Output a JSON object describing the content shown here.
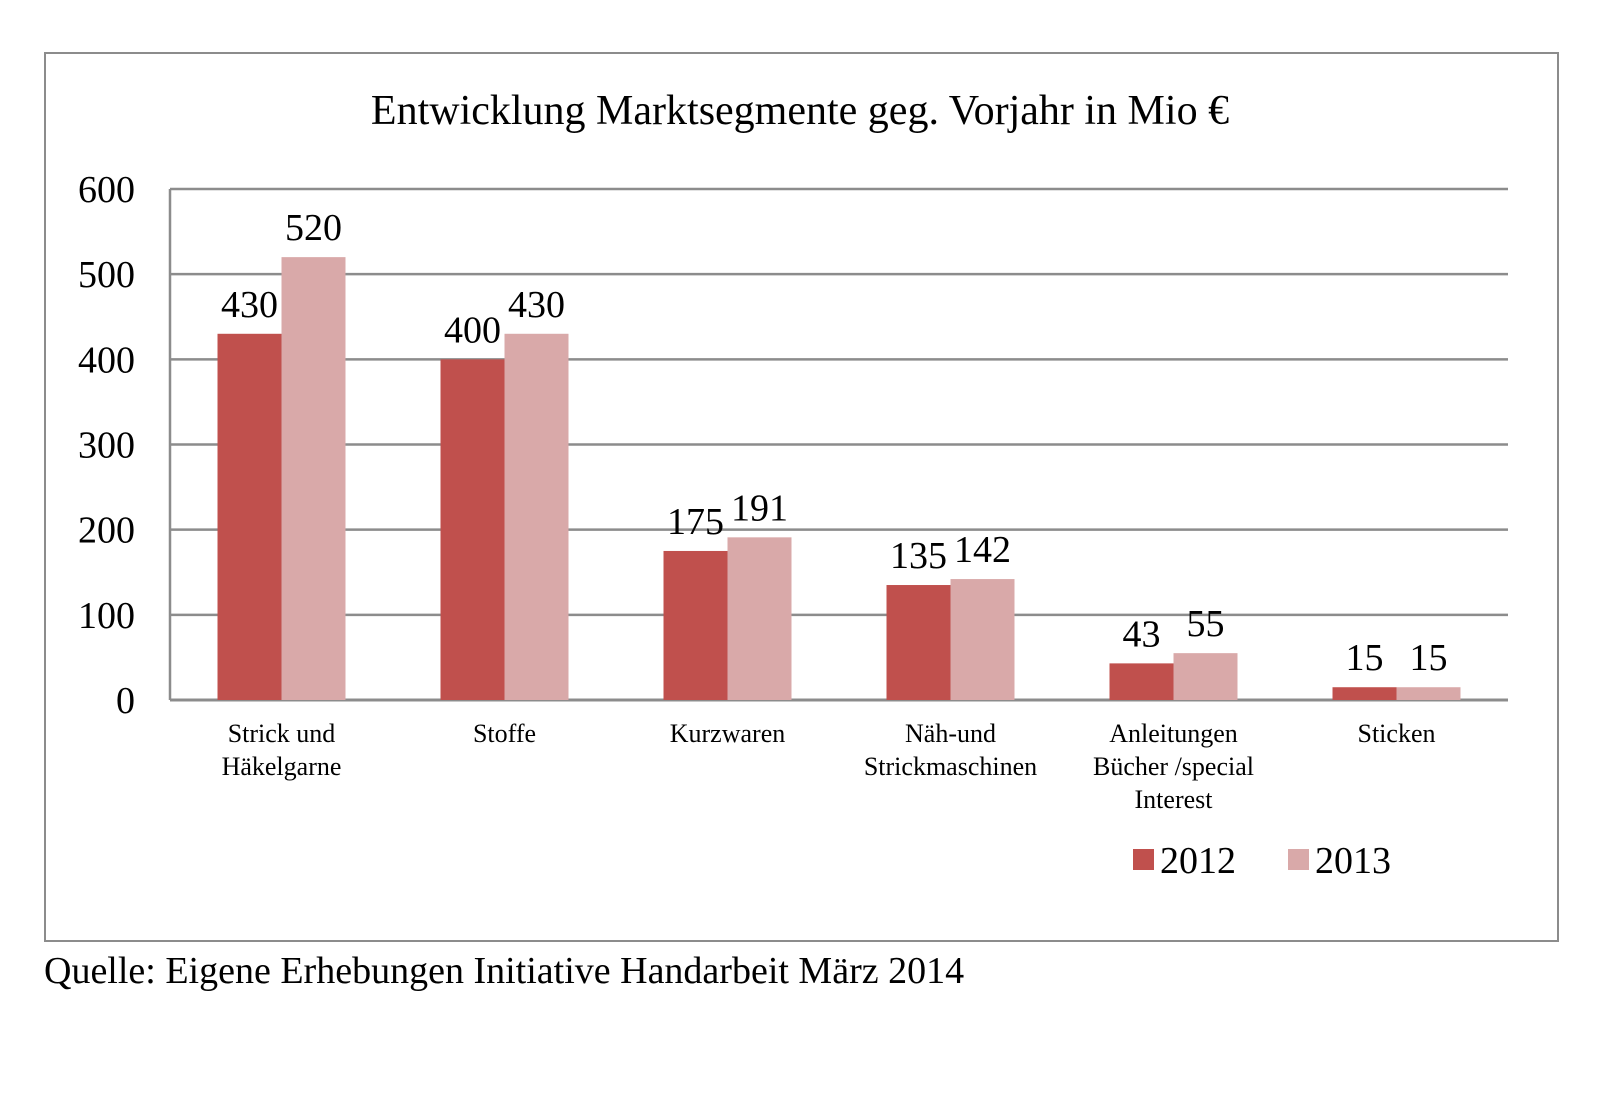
{
  "chart_data": {
    "type": "bar",
    "title": "Entwicklung Marktsegmente geg. Vorjahr in Mio €",
    "categories": [
      [
        "Strick und",
        "Häkelgarne"
      ],
      [
        "Stoffe"
      ],
      [
        "Kurzwaren"
      ],
      [
        "Näh-und",
        "Strickmaschinen"
      ],
      [
        "Anleitungen",
        "Bücher /special",
        "Interest"
      ],
      [
        "Sticken"
      ]
    ],
    "series": [
      {
        "name": "2012",
        "color": "#c0504d",
        "values": [
          430,
          400,
          175,
          135,
          43,
          15
        ]
      },
      {
        "name": "2013",
        "color": "#d9a9a9",
        "values": [
          520,
          430,
          191,
          142,
          55,
          15
        ]
      }
    ],
    "ylim": [
      0,
      600
    ],
    "yticks": [
      "0",
      "100",
      "200",
      "300",
      "400",
      "500",
      "600"
    ],
    "grid": true,
    "legend": "bottom-right",
    "xlabel": "",
    "ylabel": ""
  },
  "source_note": "Quelle: Eigene Erhebungen Initiative Handarbeit März 2014"
}
